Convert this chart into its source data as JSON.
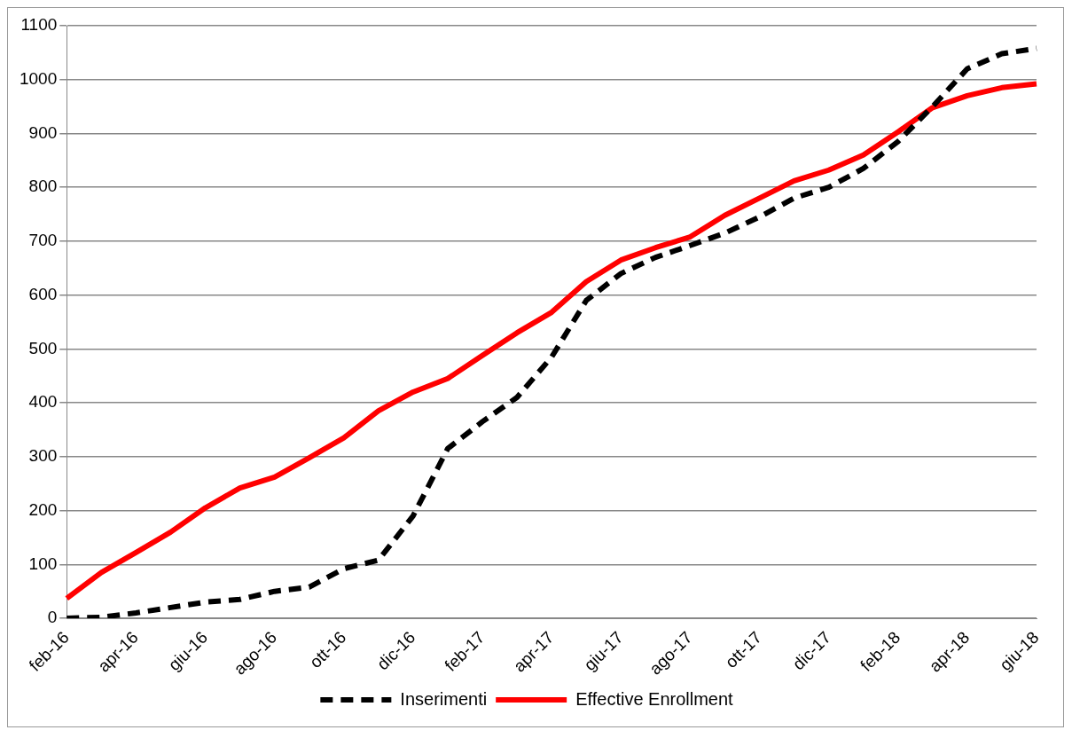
{
  "chart_data": {
    "type": "line",
    "categories": [
      "feb-16",
      null,
      "apr-16",
      null,
      "giu-16",
      null,
      "ago-16",
      null,
      "ott-16",
      null,
      "dic-16",
      null,
      "feb-17",
      null,
      "apr-17",
      null,
      "giu-17",
      null,
      "ago-17",
      null,
      "ott-17",
      null,
      "dic-17",
      null,
      "feb-18",
      null,
      "apr-18",
      null,
      "giu-18"
    ],
    "series": [
      {
        "name": "Inserimenti",
        "color": "#000000",
        "line_style": "dashed",
        "values": [
          0,
          2,
          10,
          20,
          30,
          35,
          50,
          58,
          92,
          108,
          190,
          315,
          365,
          410,
          485,
          590,
          640,
          670,
          692,
          715,
          745,
          780,
          800,
          835,
          885,
          950,
          1020,
          1048,
          1058
        ]
      },
      {
        "name": "Effective Enrollment",
        "color": "#ff0000",
        "line_style": "solid",
        "values": [
          37,
          85,
          122,
          160,
          205,
          242,
          262,
          298,
          335,
          385,
          420,
          445,
          488,
          530,
          568,
          625,
          665,
          688,
          708,
          748,
          780,
          812,
          832,
          860,
          903,
          948,
          970,
          985,
          992
        ]
      }
    ],
    "ylim": [
      0,
      1100
    ],
    "yticks": [
      0,
      100,
      200,
      300,
      400,
      500,
      600,
      700,
      800,
      900,
      1000,
      1100
    ],
    "grid": "y",
    "legend": "bottom",
    "marker": "none"
  }
}
